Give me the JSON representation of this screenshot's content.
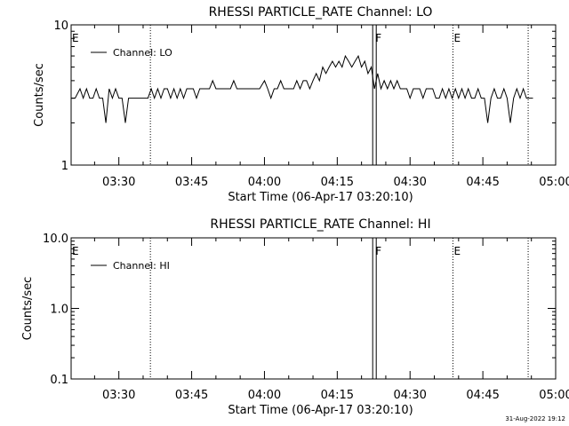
{
  "footer": {
    "timestamp": "31-Aug-2022 19:12"
  },
  "chart_data": [
    {
      "type": "line",
      "title": "RHESSI PARTICLE_RATE Channel: LO",
      "xlabel": "Start Time (06-Apr-17 03:20:10)",
      "ylabel": "Counts/sec",
      "yscale": "log",
      "ylim": [
        1,
        10
      ],
      "yticks": [
        "1",
        "10"
      ],
      "xlim": [
        "03:20:10",
        "05:00:00"
      ],
      "xticks": [
        "03:30",
        "03:45",
        "04:00",
        "04:15",
        "04:30",
        "04:45",
        "05:00"
      ],
      "legend": {
        "label": "Channel: LO",
        "placement": "top-left"
      },
      "grid": false,
      "markers": [
        {
          "time": "03:20:10",
          "label": "E",
          "style": "none"
        },
        {
          "time": "03:36:30",
          "label": "",
          "style": "dotted"
        },
        {
          "time": "04:22:40",
          "label": "F",
          "style": "solid-double"
        },
        {
          "time": "04:38:50",
          "label": "E",
          "style": "dotted"
        },
        {
          "time": "04:54:20",
          "label": "",
          "style": "dotted"
        }
      ],
      "series": [
        {
          "x": [
            "03:20:10",
            "03:21:00",
            "03:22:00",
            "03:22:40",
            "03:23:20",
            "03:24:00",
            "03:24:40",
            "03:25:20",
            "03:26:00",
            "03:26:40",
            "03:27:20",
            "03:28:00",
            "03:28:40",
            "03:29:20",
            "03:30:00",
            "03:30:40",
            "03:31:20",
            "03:32:00",
            "03:32:40",
            "03:33:20",
            "03:34:00",
            "03:35:00",
            "03:36:00",
            "03:36:40",
            "03:37:20",
            "03:38:00",
            "03:38:40",
            "03:39:20",
            "03:40:00",
            "03:40:40",
            "03:41:20",
            "03:42:00",
            "03:42:40",
            "03:43:20",
            "03:44:00",
            "03:44:40",
            "03:45:20",
            "03:46:00",
            "03:46:40",
            "03:47:20",
            "03:48:00",
            "03:48:40",
            "03:49:20",
            "03:50:00",
            "03:51:00",
            "03:52:00",
            "03:53:00",
            "03:53:40",
            "03:54:20",
            "03:55:00",
            "03:56:00",
            "03:57:00",
            "03:57:40",
            "03:58:20",
            "03:59:00",
            "04:00:00",
            "04:00:40",
            "04:01:20",
            "04:02:00",
            "04:02:40",
            "04:03:20",
            "04:04:00",
            "04:04:40",
            "04:05:20",
            "04:06:00",
            "04:06:40",
            "04:07:20",
            "04:08:00",
            "04:08:40",
            "04:09:20",
            "04:10:00",
            "04:10:40",
            "04:11:20",
            "04:12:00",
            "04:12:40",
            "04:13:20",
            "04:14:00",
            "04:14:40",
            "04:15:20",
            "04:16:00",
            "04:16:40",
            "04:17:20",
            "04:18:00",
            "04:18:40",
            "04:19:20",
            "04:20:00",
            "04:20:40",
            "04:21:20",
            "04:22:00",
            "04:22:40",
            "04:23:20",
            "04:24:00",
            "04:24:40",
            "04:25:20",
            "04:26:00",
            "04:26:40",
            "04:27:20",
            "04:28:00",
            "04:28:40",
            "04:29:20",
            "04:30:00",
            "04:30:40",
            "04:31:20",
            "04:32:00",
            "04:32:40",
            "04:33:20",
            "04:34:00",
            "04:34:40",
            "04:35:20",
            "04:36:00",
            "04:36:40",
            "04:37:20",
            "04:38:00",
            "04:38:40",
            "04:39:20",
            "04:40:00",
            "04:40:40",
            "04:41:20",
            "04:42:00",
            "04:42:40",
            "04:43:20",
            "04:44:00",
            "04:44:40",
            "04:45:20",
            "04:46:00",
            "04:46:40",
            "04:47:20",
            "04:48:00",
            "04:48:40",
            "04:49:20",
            "04:50:00",
            "04:50:40",
            "04:51:20",
            "04:52:00",
            "04:52:40",
            "04:53:20",
            "04:54:00",
            "04:54:40",
            "04:55:20"
          ],
          "y": [
            3.0,
            3.0,
            3.5,
            3.0,
            3.5,
            3.0,
            3.0,
            3.5,
            3.0,
            3.0,
            2.0,
            3.5,
            3.0,
            3.5,
            3.0,
            3.0,
            2.0,
            3.0,
            3.0,
            3.0,
            3.0,
            3.0,
            3.0,
            3.5,
            3.0,
            3.5,
            3.0,
            3.5,
            3.5,
            3.0,
            3.5,
            3.0,
            3.5,
            3.0,
            3.5,
            3.5,
            3.5,
            3.0,
            3.5,
            3.5,
            3.5,
            3.5,
            4.0,
            3.5,
            3.5,
            3.5,
            3.5,
            4.0,
            3.5,
            3.5,
            3.5,
            3.5,
            3.5,
            3.5,
            3.5,
            4.0,
            3.5,
            3.0,
            3.5,
            3.5,
            4.0,
            3.5,
            3.5,
            3.5,
            3.5,
            4.0,
            3.5,
            4.0,
            4.0,
            3.5,
            4.0,
            4.5,
            4.0,
            5.0,
            4.5,
            5.0,
            5.5,
            5.0,
            5.5,
            5.0,
            6.0,
            5.5,
            5.0,
            5.5,
            6.0,
            5.0,
            5.5,
            4.5,
            5.0,
            3.5,
            4.5,
            3.5,
            4.0,
            3.5,
            4.0,
            3.5,
            4.0,
            3.5,
            3.5,
            3.5,
            3.0,
            3.5,
            3.5,
            3.5,
            3.0,
            3.5,
            3.5,
            3.5,
            3.0,
            3.0,
            3.5,
            3.0,
            3.5,
            3.0,
            3.5,
            3.0,
            3.5,
            3.0,
            3.5,
            3.0,
            3.0,
            3.5,
            3.0,
            3.0,
            2.0,
            3.0,
            3.5,
            3.0,
            3.0,
            3.5,
            3.0,
            2.0,
            3.0,
            3.5,
            3.0,
            3.5,
            3.0,
            3.0,
            3.0
          ]
        }
      ]
    },
    {
      "type": "line",
      "title": "RHESSI PARTICLE_RATE Channel: HI",
      "xlabel": "Start Time (06-Apr-17 03:20:10)",
      "ylabel": "Counts/sec",
      "yscale": "log",
      "ylim": [
        0.1,
        10
      ],
      "yticks": [
        "0.1",
        "1.0",
        "10.0"
      ],
      "xlim": [
        "03:20:10",
        "05:00:00"
      ],
      "xticks": [
        "03:30",
        "03:45",
        "04:00",
        "04:15",
        "04:30",
        "04:45",
        "05:00"
      ],
      "legend": {
        "label": "Channel: HI",
        "placement": "top-left"
      },
      "grid": false,
      "markers": [
        {
          "time": "03:20:10",
          "label": "E",
          "style": "none"
        },
        {
          "time": "03:36:30",
          "label": "",
          "style": "dotted"
        },
        {
          "time": "04:22:40",
          "label": "F",
          "style": "solid-double"
        },
        {
          "time": "04:38:50",
          "label": "E",
          "style": "dotted"
        },
        {
          "time": "04:54:20",
          "label": "",
          "style": "dotted"
        }
      ],
      "series": []
    }
  ]
}
